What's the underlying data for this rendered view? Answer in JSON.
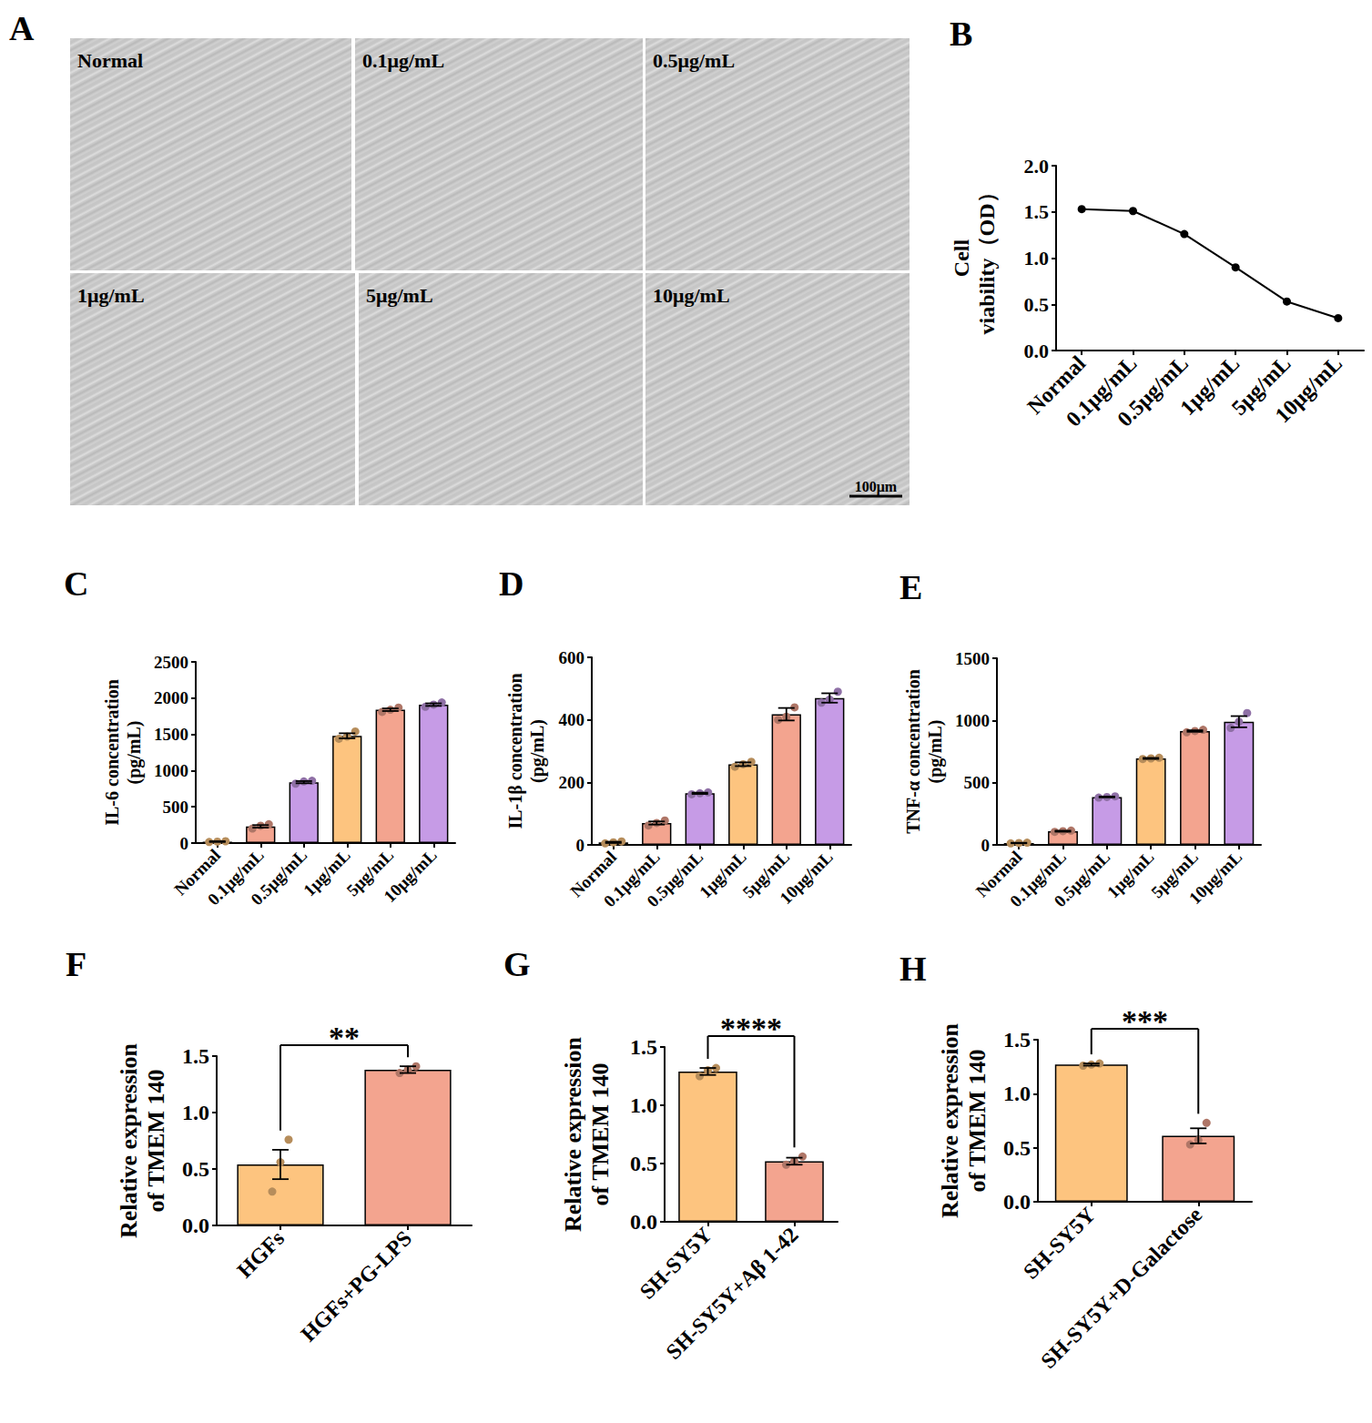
{
  "panel_A": {
    "panel": "A",
    "images": [
      "Normal",
      "0.1μg/mL",
      "0.5μg/mL",
      "1μg/mL",
      "5μg/mL",
      "10μg/mL"
    ],
    "scale_bar": "100μm"
  },
  "chart_data": [
    {
      "panel": "B",
      "type": "line",
      "y_label": "Cell viability（OD）",
      "categories": [
        "Normal",
        "0.1μg/mL",
        "0.5μg/mL",
        "1μg/mL",
        "5μg/mL",
        "10μg/mL"
      ],
      "values": [
        1.53,
        1.51,
        1.26,
        0.9,
        0.53,
        0.35
      ],
      "color": "#000000",
      "marker": "circle",
      "ylim": [
        0,
        2
      ],
      "yticks": [
        {
          "value": 0,
          "label": "0.0"
        },
        {
          "value": 0.5,
          "label": "0.5"
        },
        {
          "value": 1,
          "label": "1.0"
        },
        {
          "value": 1.5,
          "label": "1.5"
        },
        {
          "value": 2,
          "label": "2.0"
        }
      ],
      "grid": false
    },
    {
      "panel": "C",
      "type": "bar",
      "y_label": "IL-6 concentration (pg/mL)",
      "categories": [
        "Normal",
        "0.1μg/mL",
        "0.5μg/mL",
        "1μg/mL",
        "5μg/mL",
        "10μg/mL"
      ],
      "values": [
        20,
        230,
        840,
        1480,
        1840,
        1910
      ],
      "errors": [
        5,
        18,
        15,
        35,
        18,
        18
      ],
      "points": [
        [
          15,
          20,
          25
        ],
        [
          200,
          240,
          260
        ],
        [
          820,
          850,
          860
        ],
        [
          1440,
          1470,
          1540
        ],
        [
          1810,
          1840,
          1870
        ],
        [
          1880,
          1910,
          1940
        ]
      ],
      "colors": [
        "#FDC47F",
        "#F3A48F",
        "#C69BE6",
        "#FDC47F",
        "#F3A48F",
        "#C69BE6"
      ],
      "ylim": [
        0,
        2500
      ],
      "yticks": [
        0,
        500,
        1000,
        1500,
        2000,
        2500
      ],
      "grid": false
    },
    {
      "panel": "D",
      "type": "bar",
      "y_label": "IL-1β concentration (pg/mL)",
      "categories": [
        "Normal",
        "0.1μg/mL",
        "0.5μg/mL",
        "1μg/mL",
        "5μg/mL",
        "10μg/mL"
      ],
      "values": [
        8,
        70,
        165,
        258,
        418,
        470
      ],
      "errors": [
        2,
        5,
        2,
        6,
        20,
        15
      ],
      "points": [
        [
          5,
          8,
          11
        ],
        [
          62,
          70,
          78
        ],
        [
          162,
          165,
          168
        ],
        [
          250,
          258,
          266
        ],
        [
          400,
          410,
          440
        ],
        [
          455,
          465,
          490
        ]
      ],
      "colors": [
        "#FDC47F",
        "#F3A48F",
        "#C69BE6",
        "#FDC47F",
        "#F3A48F",
        "#C69BE6"
      ],
      "ylim": [
        0,
        600
      ],
      "yticks": [
        0,
        200,
        400,
        600
      ],
      "grid": false
    },
    {
      "panel": "E",
      "type": "bar",
      "y_label": "TNF-α concentration (pg/mL)",
      "categories": [
        "Normal",
        "0.1μg/mL",
        "0.5μg/mL",
        "1μg/mL",
        "5μg/mL",
        "10μg/mL"
      ],
      "values": [
        15,
        110,
        385,
        695,
        915,
        990
      ],
      "errors": [
        2,
        4,
        3,
        4,
        6,
        45
      ],
      "points": [
        [
          12,
          15,
          18
        ],
        [
          105,
          110,
          115
        ],
        [
          380,
          385,
          390
        ],
        [
          690,
          695,
          700
        ],
        [
          905,
          915,
          925
        ],
        [
          940,
          990,
          1060
        ]
      ],
      "colors": [
        "#FDC47F",
        "#F3A48F",
        "#C69BE6",
        "#FDC47F",
        "#F3A48F",
        "#C69BE6"
      ],
      "ylim": [
        0,
        1500
      ],
      "yticks": [
        0,
        500,
        1000,
        1500
      ],
      "grid": false
    },
    {
      "panel": "F",
      "type": "bar",
      "y_label": "Relative expression of TMEM 140",
      "categories": [
        "HGFs",
        "HGFs+PG-LPS"
      ],
      "values": [
        0.54,
        1.38
      ],
      "errors": [
        0.13,
        0.03
      ],
      "points": [
        [
          0.3,
          0.56,
          0.76
        ],
        [
          1.35,
          1.38,
          1.41
        ]
      ],
      "colors": [
        "#FDC47F",
        "#F3A48F"
      ],
      "ylim": [
        0,
        1.5
      ],
      "yticks": [
        {
          "value": 0,
          "label": "0.0"
        },
        {
          "value": 0.5,
          "label": "0.5"
        },
        {
          "value": 1,
          "label": "1.0"
        },
        {
          "value": 1.5,
          "label": "1.5"
        }
      ],
      "annotations": [
        {
          "text": "**",
          "from": 0,
          "to": 1
        }
      ],
      "grid": false
    },
    {
      "panel": "G",
      "type": "bar",
      "y_label": "Relative expression of TMEM 140",
      "categories": [
        "SH-SY5Y",
        "SH-SY5Y+Aβ 1-42"
      ],
      "values": [
        1.29,
        0.52
      ],
      "errors": [
        0.03,
        0.03
      ],
      "points": [
        [
          1.25,
          1.3,
          1.32
        ],
        [
          0.49,
          0.52,
          0.56
        ]
      ],
      "colors": [
        "#FDC47F",
        "#F3A48F"
      ],
      "ylim": [
        0,
        1.5
      ],
      "yticks": [
        {
          "value": 0,
          "label": "0.0"
        },
        {
          "value": 0.5,
          "label": "0.5"
        },
        {
          "value": 1,
          "label": "1.0"
        },
        {
          "value": 1.5,
          "label": "1.5"
        }
      ],
      "annotations": [
        {
          "text": "****",
          "from": 0,
          "to": 1
        }
      ],
      "grid": false
    },
    {
      "panel": "H",
      "type": "bar",
      "y_label": "Relative expression of TMEM 140",
      "categories": [
        "SH-SY5Y",
        "SH-SY5Y+D-Galactose"
      ],
      "values": [
        1.27,
        0.61
      ],
      "errors": [
        0.01,
        0.07
      ],
      "points": [
        [
          1.26,
          1.27,
          1.28
        ],
        [
          0.53,
          0.57,
          0.73
        ]
      ],
      "colors": [
        "#FDC47F",
        "#F3A48F"
      ],
      "ylim": [
        0,
        1.5
      ],
      "yticks": [
        {
          "value": 0,
          "label": "0.0"
        },
        {
          "value": 0.5,
          "label": "0.5"
        },
        {
          "value": 1,
          "label": "1.0"
        },
        {
          "value": 1.5,
          "label": "1.5"
        }
      ],
      "annotations": [
        {
          "text": "***",
          "from": 0,
          "to": 1
        }
      ],
      "grid": false
    }
  ]
}
